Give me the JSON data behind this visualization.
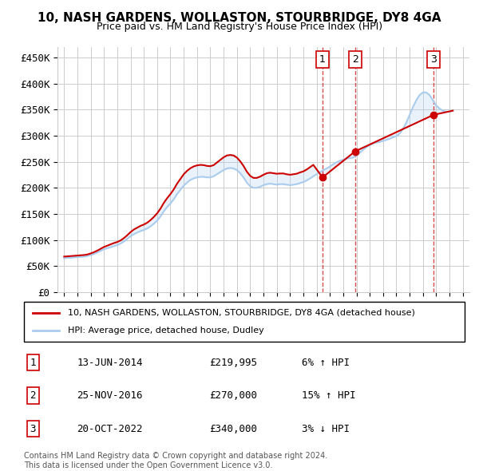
{
  "title": "10, NASH GARDENS, WOLLASTON, STOURBRIDGE, DY8 4GA",
  "subtitle": "Price paid vs. HM Land Registry's House Price Index (HPI)",
  "ylabel": "",
  "ylim": [
    0,
    470000
  ],
  "yticks": [
    0,
    50000,
    100000,
    150000,
    200000,
    250000,
    300000,
    350000,
    400000,
    450000
  ],
  "ytick_labels": [
    "£0",
    "£50K",
    "£100K",
    "£150K",
    "£200K",
    "£250K",
    "£300K",
    "£350K",
    "£400K",
    "£450K"
  ],
  "background_color": "#ffffff",
  "grid_color": "#cccccc",
  "sale_color": "#cc0000",
  "hpi_color": "#aaccee",
  "transaction_color": "#cc0000",
  "sale_dates": [
    "13-JUN-2014",
    "25-NOV-2016",
    "20-OCT-2022"
  ],
  "sale_prices": [
    219995,
    270000,
    340000
  ],
  "sale_labels": [
    "1",
    "2",
    "3"
  ],
  "sale_hpi_pct": [
    "6% ↑ HPI",
    "15% ↑ HPI",
    "3% ↓ HPI"
  ],
  "legend_property": "10, NASH GARDENS, WOLLASTON, STOURBRIDGE, DY8 4GA (detached house)",
  "legend_hpi": "HPI: Average price, detached house, Dudley",
  "footnote": "Contains HM Land Registry data © Crown copyright and database right 2024.\nThis data is licensed under the Open Government Licence v3.0.",
  "hpi_years": [
    1995.0,
    1995.25,
    1995.5,
    1995.75,
    1996.0,
    1996.25,
    1996.5,
    1996.75,
    1997.0,
    1997.25,
    1997.5,
    1997.75,
    1998.0,
    1998.25,
    1998.5,
    1998.75,
    1999.0,
    1999.25,
    1999.5,
    1999.75,
    2000.0,
    2000.25,
    2000.5,
    2000.75,
    2001.0,
    2001.25,
    2001.5,
    2001.75,
    2002.0,
    2002.25,
    2002.5,
    2002.75,
    2003.0,
    2003.25,
    2003.5,
    2003.75,
    2004.0,
    2004.25,
    2004.5,
    2004.75,
    2005.0,
    2005.25,
    2005.5,
    2005.75,
    2006.0,
    2006.25,
    2006.5,
    2006.75,
    2007.0,
    2007.25,
    2007.5,
    2007.75,
    2008.0,
    2008.25,
    2008.5,
    2008.75,
    2009.0,
    2009.25,
    2009.5,
    2009.75,
    2010.0,
    2010.25,
    2010.5,
    2010.75,
    2011.0,
    2011.25,
    2011.5,
    2011.75,
    2012.0,
    2012.25,
    2012.5,
    2012.75,
    2013.0,
    2013.25,
    2013.5,
    2013.75,
    2014.0,
    2014.25,
    2014.5,
    2014.75,
    2015.0,
    2015.25,
    2015.5,
    2015.75,
    2016.0,
    2016.25,
    2016.5,
    2016.75,
    2017.0,
    2017.25,
    2017.5,
    2017.75,
    2018.0,
    2018.25,
    2018.5,
    2018.75,
    2019.0,
    2019.25,
    2019.5,
    2019.75,
    2020.0,
    2020.25,
    2020.5,
    2020.75,
    2021.0,
    2021.25,
    2021.5,
    2021.75,
    2022.0,
    2022.25,
    2022.5,
    2022.75,
    2023.0,
    2023.25,
    2023.5,
    2023.75,
    2024.0,
    2024.25
  ],
  "hpi_values": [
    65000,
    65500,
    66000,
    66500,
    67000,
    67500,
    68000,
    69000,
    71000,
    73000,
    76000,
    79000,
    82000,
    84000,
    86000,
    88000,
    90000,
    93000,
    97000,
    102000,
    107000,
    111000,
    114000,
    117000,
    119000,
    122000,
    126000,
    131000,
    137000,
    145000,
    155000,
    163000,
    170000,
    178000,
    188000,
    196000,
    204000,
    210000,
    215000,
    218000,
    220000,
    221000,
    221000,
    220000,
    220000,
    222000,
    226000,
    230000,
    234000,
    237000,
    238000,
    237000,
    234000,
    228000,
    220000,
    210000,
    203000,
    200000,
    200000,
    202000,
    205000,
    207000,
    208000,
    207000,
    206000,
    207000,
    207000,
    206000,
    205000,
    206000,
    207000,
    209000,
    211000,
    214000,
    218000,
    222000,
    226000,
    230000,
    234000,
    237000,
    241000,
    245000,
    249000,
    252000,
    254000,
    256000,
    257000,
    258000,
    262000,
    267000,
    273000,
    278000,
    282000,
    285000,
    287000,
    288000,
    290000,
    292000,
    294000,
    297000,
    299000,
    304000,
    313000,
    325000,
    340000,
    355000,
    368000,
    378000,
    383000,
    383000,
    378000,
    368000,
    358000,
    352000,
    348000,
    346000,
    346000,
    348000
  ],
  "sale_line_years": [
    1995.0,
    1995.25,
    1995.5,
    1995.75,
    1996.0,
    1996.25,
    1996.5,
    1996.75,
    1997.0,
    1997.25,
    1997.5,
    1997.75,
    1998.0,
    1998.25,
    1998.5,
    1998.75,
    1999.0,
    1999.25,
    1999.5,
    1999.75,
    2000.0,
    2000.25,
    2000.5,
    2000.75,
    2001.0,
    2001.25,
    2001.5,
    2001.75,
    2002.0,
    2002.25,
    2002.5,
    2002.75,
    2003.0,
    2003.25,
    2003.5,
    2003.75,
    2004.0,
    2004.25,
    2004.5,
    2004.75,
    2005.0,
    2005.25,
    2005.5,
    2005.75,
    2006.0,
    2006.25,
    2006.5,
    2006.75,
    2007.0,
    2007.25,
    2007.5,
    2007.75,
    2008.0,
    2008.25,
    2008.5,
    2008.75,
    2009.0,
    2009.25,
    2009.5,
    2009.75,
    2010.0,
    2010.25,
    2010.5,
    2010.75,
    2011.0,
    2011.25,
    2011.5,
    2011.75,
    2012.0,
    2012.25,
    2012.5,
    2012.75,
    2013.0,
    2013.25,
    2013.5,
    2013.75,
    2014.45,
    2016.9,
    2022.8,
    2024.25
  ],
  "sale_line_values": [
    68000,
    68500,
    69000,
    69500,
    70000,
    70500,
    71000,
    72000,
    74000,
    76500,
    79500,
    83000,
    86500,
    89000,
    91500,
    94000,
    96000,
    99000,
    103500,
    109000,
    115000,
    120000,
    123500,
    127000,
    129500,
    133000,
    138000,
    144000,
    151000,
    160000,
    171000,
    180000,
    188000,
    197000,
    208000,
    217000,
    226000,
    232500,
    237500,
    241000,
    243000,
    244000,
    243500,
    242000,
    241500,
    243500,
    248500,
    253500,
    258500,
    262000,
    263000,
    262000,
    258000,
    251000,
    242000,
    231000,
    223000,
    219000,
    219000,
    221500,
    225000,
    228000,
    229000,
    228000,
    227000,
    227500,
    227500,
    226000,
    225000,
    226000,
    227000,
    229500,
    231500,
    235000,
    239500,
    244000,
    219995,
    270000,
    340000,
    348000
  ]
}
